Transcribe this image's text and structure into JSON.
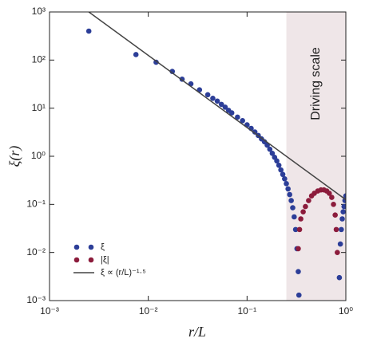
{
  "chart_data": {
    "type": "scatter",
    "xlabel": "r/L",
    "ylabel": "ξ(r)",
    "xscale": "log",
    "yscale": "log",
    "xlim": [
      0.001,
      1
    ],
    "ylim": [
      0.001,
      1000
    ],
    "xticks": [
      {
        "value": 0.001,
        "label": "10⁻³"
      },
      {
        "value": 0.01,
        "label": "10⁻²"
      },
      {
        "value": 0.1,
        "label": "10⁻¹"
      },
      {
        "value": 1,
        "label": "10⁰"
      }
    ],
    "yticks": [
      {
        "value": 0.001,
        "label": "10⁻³"
      },
      {
        "value": 0.01,
        "label": "10⁻²"
      },
      {
        "value": 0.1,
        "label": "10⁻¹"
      },
      {
        "value": 1,
        "label": "10⁰"
      },
      {
        "value": 10,
        "label": "10¹"
      },
      {
        "value": 100,
        "label": "10²"
      },
      {
        "value": 1000,
        "label": "10³"
      }
    ],
    "legend": "lower left",
    "annotation": {
      "text": "Driving scale",
      "span": [
        0.25,
        1
      ],
      "color": "#efe6e8"
    },
    "series": [
      {
        "name": "ξ",
        "type": "scatter",
        "color": "#2c3e98",
        "x": [
          0.0025,
          0.0075,
          0.012,
          0.0175,
          0.022,
          0.027,
          0.033,
          0.04,
          0.045,
          0.05,
          0.055,
          0.06,
          0.065,
          0.07,
          0.08,
          0.09,
          0.1,
          0.11,
          0.12,
          0.13,
          0.14,
          0.15,
          0.16,
          0.17,
          0.18,
          0.19,
          0.2,
          0.21,
          0.22,
          0.23,
          0.24,
          0.25,
          0.26,
          0.27,
          0.28,
          0.29,
          0.3,
          0.31,
          0.32,
          0.33,
          0.335,
          0.86,
          0.88,
          0.9,
          0.92,
          0.94,
          0.96,
          0.98,
          1.0
        ],
        "values": [
          400,
          130,
          90,
          58,
          40,
          32,
          24,
          19,
          16,
          14,
          12,
          10.5,
          9,
          8,
          6.5,
          5.5,
          4.5,
          3.8,
          3.2,
          2.7,
          2.3,
          2.0,
          1.7,
          1.4,
          1.15,
          0.95,
          0.8,
          0.65,
          0.52,
          0.42,
          0.34,
          0.27,
          0.21,
          0.16,
          0.12,
          0.085,
          0.055,
          0.03,
          0.012,
          0.004,
          0.0013,
          0.003,
          0.015,
          0.03,
          0.05,
          0.07,
          0.09,
          0.12,
          0.15
        ]
      },
      {
        "name": "|ξ|",
        "type": "scatter",
        "color": "#8c1c3c",
        "x": [
          0.33,
          0.34,
          0.35,
          0.37,
          0.39,
          0.42,
          0.45,
          0.48,
          0.52,
          0.56,
          0.6,
          0.64,
          0.68,
          0.72,
          0.75,
          0.78,
          0.8,
          0.82
        ],
        "values": [
          0.012,
          0.03,
          0.05,
          0.07,
          0.09,
          0.12,
          0.15,
          0.17,
          0.19,
          0.2,
          0.2,
          0.19,
          0.17,
          0.14,
          0.1,
          0.06,
          0.03,
          0.01
        ]
      },
      {
        "name": "ξ ∝ (r/L)⁻¹·⁵",
        "type": "line",
        "color": "#444444",
        "x": [
          0.0025,
          1
        ],
        "values": [
          1000,
          0.125
        ]
      }
    ]
  }
}
